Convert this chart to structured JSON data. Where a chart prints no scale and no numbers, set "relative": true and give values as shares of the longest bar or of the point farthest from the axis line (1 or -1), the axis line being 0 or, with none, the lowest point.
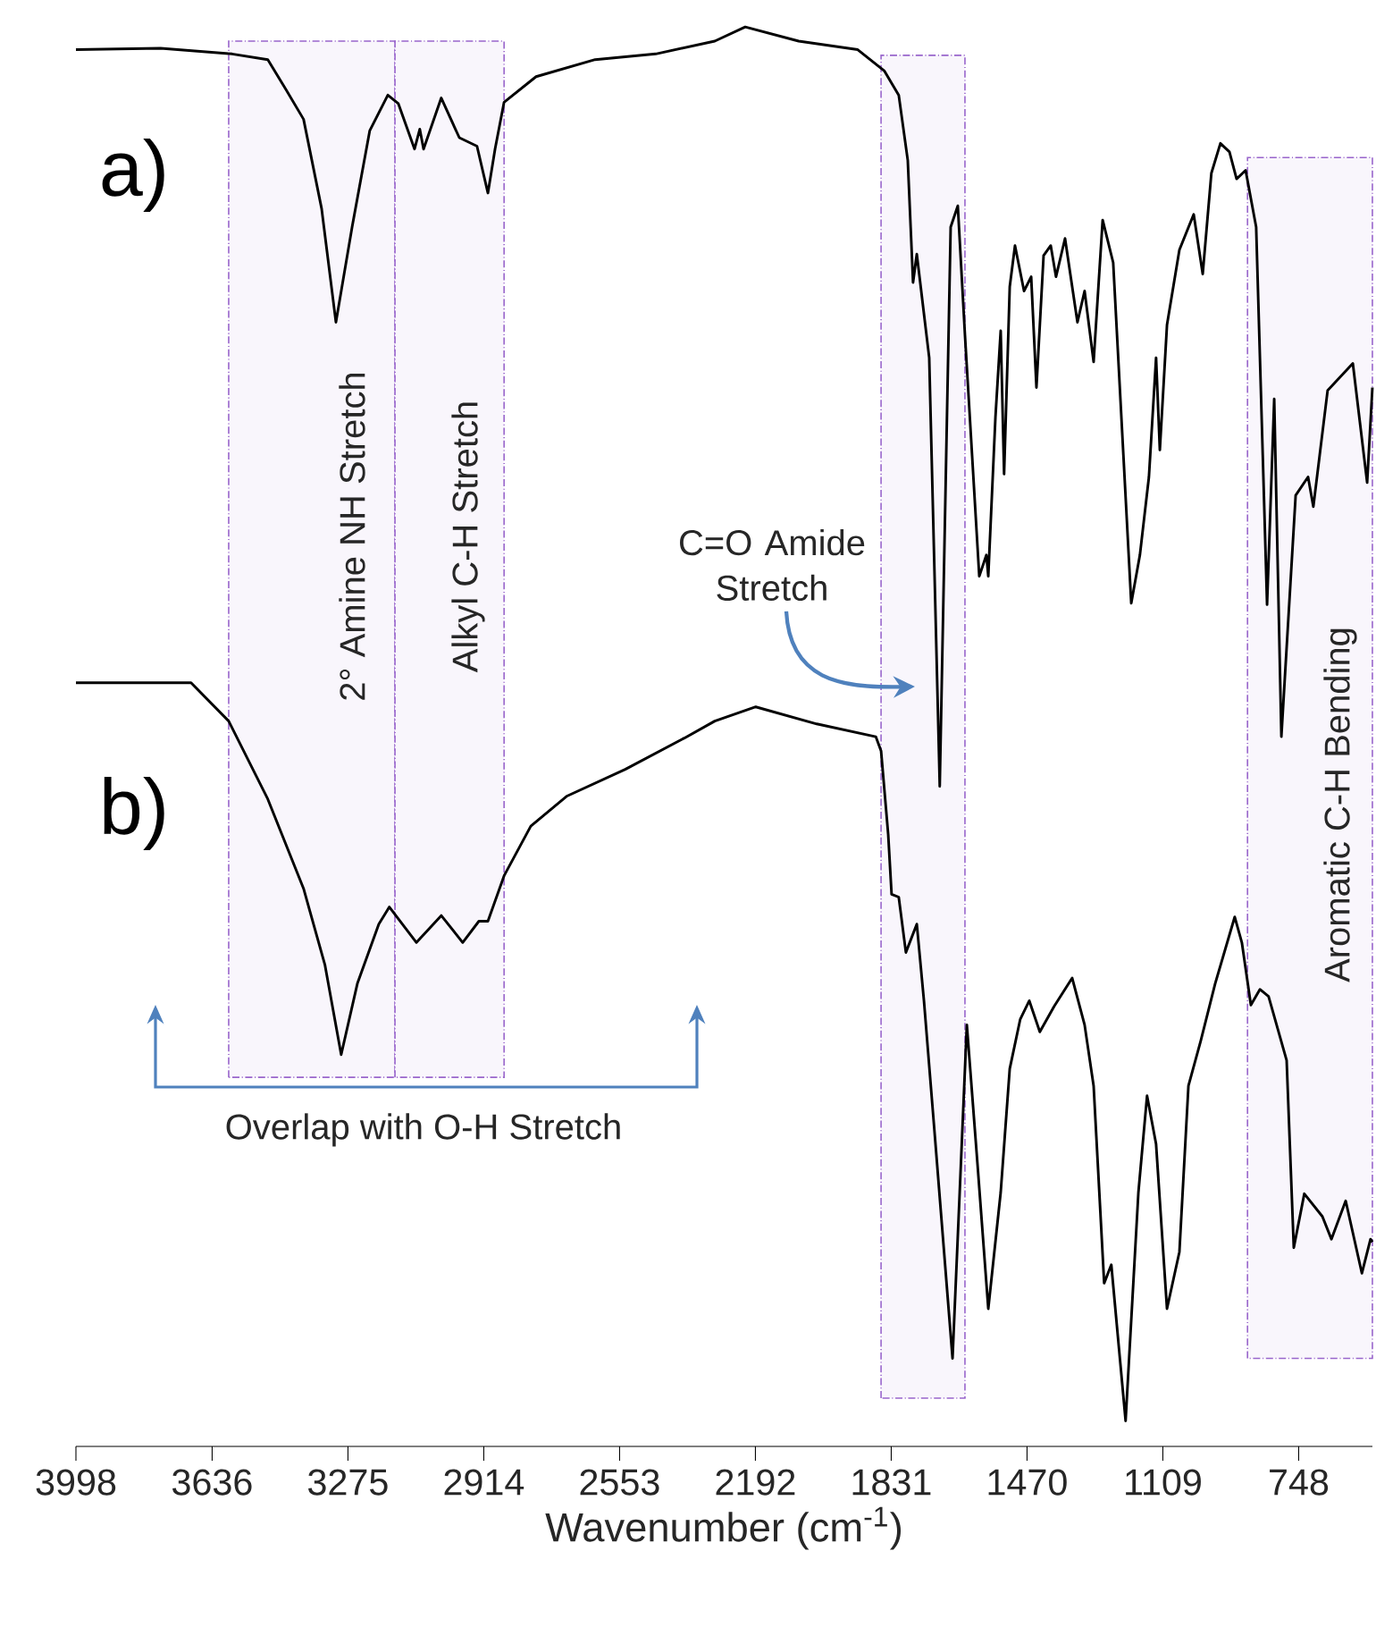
{
  "chart_data": {
    "type": "line",
    "relative": true,
    "xlabel": "Wavenumber (cm$^{-1}$)",
    "xlim": [
      3998,
      552
    ],
    "xticks": [
      3998,
      3636,
      3275,
      2914,
      2553,
      2192,
      1831,
      1470,
      1109,
      748
    ],
    "line_style": "solid",
    "series": [
      {
        "name": "a)",
        "color": "#000000",
        "x": [
          3998,
          3773,
          3583,
          3488,
          3440,
          3393,
          3345,
          3307,
          3264,
          3217,
          3169,
          3141,
          3098,
          3084,
          3074,
          3027,
          2979,
          2932,
          2903,
          2884,
          2860,
          2775,
          2618,
          2457,
          2300,
          2219,
          2077,
          1920,
          1849,
          1811,
          1787,
          1773,
          1763,
          1730,
          1702,
          1673,
          1654,
          1635,
          1597,
          1578,
          1573,
          1554,
          1540,
          1531,
          1516,
          1502,
          1478,
          1459,
          1445,
          1426,
          1407,
          1393,
          1369,
          1336,
          1317,
          1293,
          1269,
          1241,
          1193,
          1170,
          1146,
          1127,
          1117,
          1098,
          1065,
          1027,
          1003,
          980,
          956,
          932,
          913,
          889,
          861,
          832,
          813,
          794,
          756,
          723,
          709,
          671,
          604,
          566,
          552
        ],
        "values": [
          0.984,
          0.985,
          0.981,
          0.977,
          0.956,
          0.935,
          0.872,
          0.792,
          0.859,
          0.927,
          0.952,
          0.946,
          0.914,
          0.928,
          0.914,
          0.95,
          0.922,
          0.916,
          0.883,
          0.914,
          0.947,
          0.965,
          0.977,
          0.981,
          0.99,
          1.0,
          0.99,
          0.984,
          0.969,
          0.952,
          0.906,
          0.82,
          0.84,
          0.767,
          0.465,
          0.859,
          0.874,
          0.783,
          0.613,
          0.628,
          0.613,
          0.725,
          0.786,
          0.685,
          0.817,
          0.846,
          0.814,
          0.824,
          0.746,
          0.839,
          0.846,
          0.824,
          0.851,
          0.792,
          0.814,
          0.764,
          0.864,
          0.834,
          0.594,
          0.628,
          0.683,
          0.767,
          0.702,
          0.79,
          0.843,
          0.868,
          0.826,
          0.897,
          0.918,
          0.912,
          0.893,
          0.899,
          0.859,
          0.593,
          0.738,
          0.5,
          0.67,
          0.683,
          0.662,
          0.744,
          0.763,
          0.679,
          0.746
        ]
      },
      {
        "name": "b)",
        "color": "#000000",
        "x": [
          3998,
          3692,
          3592,
          3488,
          3393,
          3336,
          3293,
          3250,
          3193,
          3165,
          3093,
          3027,
          2970,
          2927,
          2903,
          2860,
          2789,
          2694,
          2538,
          2381,
          2300,
          2191,
          2029,
          1872,
          1858,
          1839,
          1830,
          1811,
          1792,
          1763,
          1744,
          1716,
          1668,
          1649,
          1630,
          1602,
          1573,
          1540,
          1516,
          1488,
          1464,
          1436,
          1398,
          1350,
          1317,
          1293,
          1265,
          1246,
          1208,
          1174,
          1151,
          1127,
          1098,
          1065,
          1041,
          1008,
          970,
          918,
          899,
          875,
          851,
          828,
          780,
          761,
          733,
          685,
          661,
          623,
          580,
          557,
          552
        ],
        "values": [
          0.538,
          0.538,
          0.511,
          0.456,
          0.393,
          0.339,
          0.276,
          0.326,
          0.368,
          0.38,
          0.355,
          0.374,
          0.355,
          0.37,
          0.37,
          0.402,
          0.437,
          0.458,
          0.477,
          0.499,
          0.511,
          0.521,
          0.509,
          0.5,
          0.49,
          0.431,
          0.389,
          0.387,
          0.348,
          0.368,
          0.314,
          0.222,
          0.062,
          0.179,
          0.297,
          0.2,
          0.097,
          0.179,
          0.266,
          0.301,
          0.314,
          0.292,
          0.31,
          0.33,
          0.297,
          0.254,
          0.115,
          0.128,
          0.018,
          0.179,
          0.247,
          0.213,
          0.097,
          0.137,
          0.254,
          0.286,
          0.326,
          0.373,
          0.355,
          0.311,
          0.322,
          0.317,
          0.272,
          0.14,
          0.178,
          0.162,
          0.146,
          0.173,
          0.122,
          0.146,
          0.144
        ]
      }
    ],
    "bands": [
      {
        "axis": "x",
        "from": 3592,
        "to": 3150,
        "color": "#9966cc"
      },
      {
        "axis": "x",
        "from": 3150,
        "to": 2860,
        "color": "#9966cc"
      },
      {
        "axis": "x",
        "from": 1858,
        "to": 1635,
        "color": "#9966cc"
      },
      {
        "axis": "x",
        "from": 884,
        "to": 552,
        "color": "#9966cc"
      }
    ],
    "annotations": [
      "2° Amine NH Stretch",
      "Alkyl C-H Stretch",
      "C=O Amide Stretch",
      "Aromatic C-H Bending",
      "Overlap with O-H Stretch"
    ]
  }
}
